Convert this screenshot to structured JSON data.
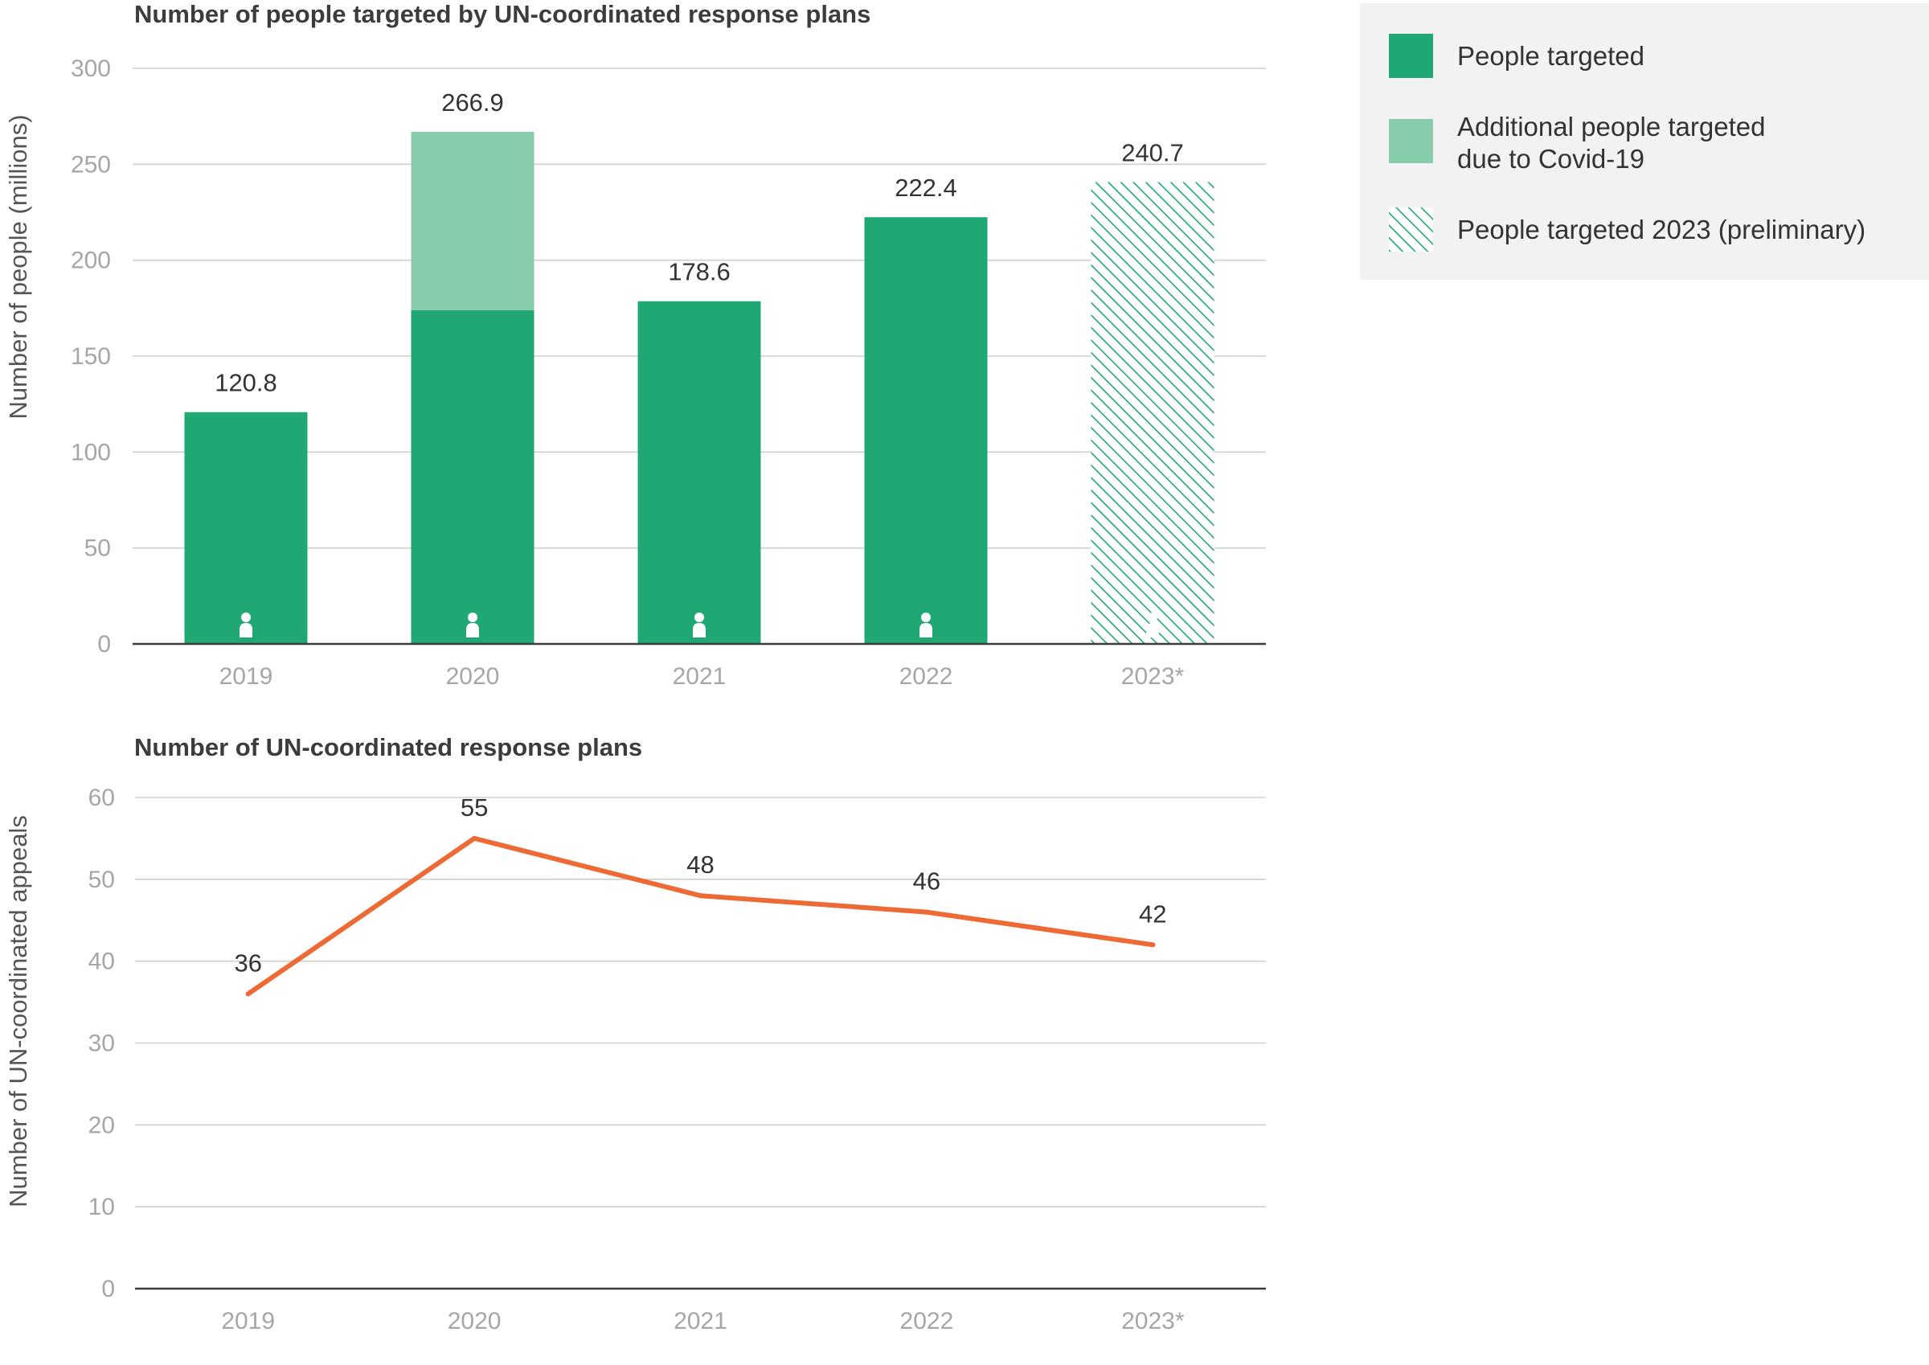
{
  "colors": {
    "people_targeted": "#1fa774",
    "covid_additional": "#88cdab",
    "preliminary_hatch": "#1fa774",
    "line": "#ee6a35",
    "legend_bg": "#f2f2f2",
    "person_icon": "#ffffff"
  },
  "legend": {
    "items": [
      {
        "label_lines": [
          "People targeted"
        ],
        "style": "solid"
      },
      {
        "label_lines": [
          "Additional people targeted",
          "due to Covid-19"
        ],
        "style": "light"
      },
      {
        "label_lines": [
          "People targeted 2023 (preliminary)"
        ],
        "style": "hatch"
      }
    ]
  },
  "chart_data": [
    {
      "type": "bar",
      "title": "Number of people targeted by UN-coordinated response plans",
      "ylabel": "Number of people (millions)",
      "xlabel": "",
      "ylim": [
        0,
        300
      ],
      "yticks": [
        0,
        50,
        100,
        150,
        200,
        250,
        300
      ],
      "grid": true,
      "legend_position": "top-right",
      "categories": [
        "2019",
        "2020",
        "2021",
        "2022",
        "2023*"
      ],
      "totals": [
        120.8,
        266.9,
        178.6,
        222.4,
        240.7
      ],
      "total_labels": [
        "120.8",
        "266.9",
        "178.6",
        "222.4",
        "240.7"
      ],
      "series": [
        {
          "name": "People targeted",
          "values": [
            120.8,
            174,
            178.6,
            222.4,
            null
          ]
        },
        {
          "name": "Additional people targeted due to Covid-19",
          "values": [
            null,
            92.9,
            null,
            null,
            null
          ]
        },
        {
          "name": "People targeted 2023 (preliminary)",
          "values": [
            null,
            null,
            null,
            null,
            240.7
          ]
        }
      ],
      "icons": [
        "person-icon",
        "person-icon",
        "person-icon",
        "person-icon",
        "person-icon"
      ]
    },
    {
      "type": "line",
      "title": "Number of UN-coordinated response plans",
      "ylabel": "Number of UN-coordinated appeals",
      "xlabel": "",
      "ylim": [
        0,
        60
      ],
      "yticks": [
        0,
        10,
        20,
        30,
        40,
        50,
        60
      ],
      "grid": true,
      "categories": [
        "2019",
        "2020",
        "2021",
        "2022",
        "2023*"
      ],
      "values": [
        36,
        55,
        48,
        46,
        42
      ],
      "value_labels": [
        "36",
        "55",
        "48",
        "46",
        "42"
      ]
    }
  ]
}
